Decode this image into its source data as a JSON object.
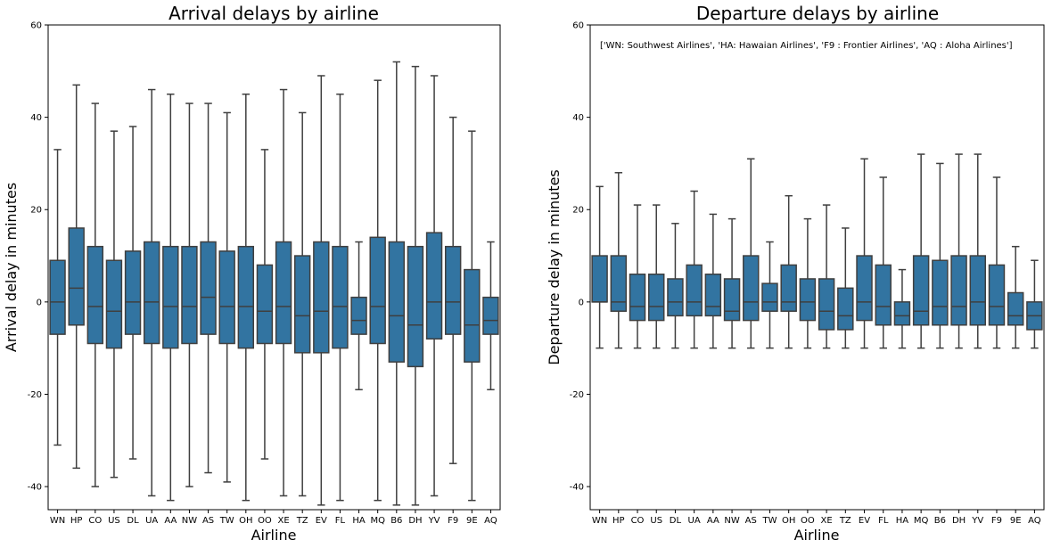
{
  "chart_data": [
    {
      "type": "box",
      "title": "Arrival delays by airline",
      "xlabel": "Airline",
      "ylabel": "Arrival delay in minutes",
      "ylim": [
        -45,
        60
      ],
      "yticks": [
        -40,
        -20,
        0,
        20,
        40,
        60
      ],
      "color": "#3274a1",
      "categories": [
        "WN",
        "HP",
        "CO",
        "US",
        "DL",
        "UA",
        "AA",
        "NW",
        "AS",
        "TW",
        "OH",
        "OO",
        "XE",
        "TZ",
        "EV",
        "FL",
        "HA",
        "MQ",
        "B6",
        "DH",
        "YV",
        "F9",
        "9E",
        "AQ"
      ],
      "boxes": [
        {
          "whislo": -31,
          "q1": -7,
          "med": 0,
          "q3": 9,
          "whishi": 33
        },
        {
          "whislo": -36,
          "q1": -5,
          "med": 3,
          "q3": 16,
          "whishi": 47
        },
        {
          "whislo": -40,
          "q1": -9,
          "med": -1,
          "q3": 12,
          "whishi": 43
        },
        {
          "whislo": -38,
          "q1": -10,
          "med": -2,
          "q3": 9,
          "whishi": 37
        },
        {
          "whislo": -34,
          "q1": -7,
          "med": 0,
          "q3": 11,
          "whishi": 38
        },
        {
          "whislo": -42,
          "q1": -9,
          "med": 0,
          "q3": 13,
          "whishi": 46
        },
        {
          "whislo": -43,
          "q1": -10,
          "med": -1,
          "q3": 12,
          "whishi": 45
        },
        {
          "whislo": -40,
          "q1": -9,
          "med": -1,
          "q3": 12,
          "whishi": 43
        },
        {
          "whislo": -37,
          "q1": -7,
          "med": 1,
          "q3": 13,
          "whishi": 43
        },
        {
          "whislo": -39,
          "q1": -9,
          "med": -1,
          "q3": 11,
          "whishi": 41
        },
        {
          "whislo": -43,
          "q1": -10,
          "med": -1,
          "q3": 12,
          "whishi": 45
        },
        {
          "whislo": -34,
          "q1": -9,
          "med": -2,
          "q3": 8,
          "whishi": 33
        },
        {
          "whislo": -42,
          "q1": -9,
          "med": -1,
          "q3": 13,
          "whishi": 46
        },
        {
          "whislo": -42,
          "q1": -11,
          "med": -3,
          "q3": 10,
          "whishi": 41
        },
        {
          "whislo": -44,
          "q1": -11,
          "med": -2,
          "q3": 13,
          "whishi": 49
        },
        {
          "whislo": -43,
          "q1": -10,
          "med": -1,
          "q3": 12,
          "whishi": 45
        },
        {
          "whislo": -19,
          "q1": -7,
          "med": -4,
          "q3": 1,
          "whishi": 13
        },
        {
          "whislo": -43,
          "q1": -9,
          "med": -1,
          "q3": 14,
          "whishi": 48
        },
        {
          "whislo": -44,
          "q1": -13,
          "med": -3,
          "q3": 13,
          "whishi": 52
        },
        {
          "whislo": -44,
          "q1": -14,
          "med": -5,
          "q3": 12,
          "whishi": 51
        },
        {
          "whislo": -42,
          "q1": -8,
          "med": 0,
          "q3": 15,
          "whishi": 49
        },
        {
          "whislo": -35,
          "q1": -7,
          "med": 0,
          "q3": 12,
          "whishi": 40
        },
        {
          "whislo": -43,
          "q1": -13,
          "med": -5,
          "q3": 7,
          "whishi": 37
        },
        {
          "whislo": -19,
          "q1": -7,
          "med": -4,
          "q3": 1,
          "whishi": 13
        }
      ]
    },
    {
      "type": "box",
      "title": "Departure delays by airline",
      "xlabel": "Airline",
      "ylabel": "Departure delay in minutes",
      "ylim": [
        -45,
        60
      ],
      "yticks": [
        -40,
        -20,
        0,
        20,
        40,
        60
      ],
      "color": "#3274a1",
      "annotation": "['WN: Southwest Airlines', 'HA: Hawaian Airlines', 'F9 : Frontier Airlines', 'AQ : Aloha Airlines']",
      "categories": [
        "WN",
        "HP",
        "CO",
        "US",
        "DL",
        "UA",
        "AA",
        "NW",
        "AS",
        "TW",
        "OH",
        "OO",
        "XE",
        "TZ",
        "EV",
        "FL",
        "HA",
        "MQ",
        "B6",
        "DH",
        "YV",
        "F9",
        "9E",
        "AQ"
      ],
      "boxes": [
        {
          "whislo": -10,
          "q1": 0,
          "med": 0,
          "q3": 10,
          "whishi": 25
        },
        {
          "whislo": -10,
          "q1": -2,
          "med": 0,
          "q3": 10,
          "whishi": 28
        },
        {
          "whislo": -10,
          "q1": -4,
          "med": -1,
          "q3": 6,
          "whishi": 21
        },
        {
          "whislo": -10,
          "q1": -4,
          "med": -1,
          "q3": 6,
          "whishi": 21
        },
        {
          "whislo": -10,
          "q1": -3,
          "med": 0,
          "q3": 5,
          "whishi": 17
        },
        {
          "whislo": -10,
          "q1": -3,
          "med": 0,
          "q3": 8,
          "whishi": 24
        },
        {
          "whislo": -10,
          "q1": -3,
          "med": -1,
          "q3": 6,
          "whishi": 19
        },
        {
          "whislo": -10,
          "q1": -4,
          "med": -2,
          "q3": 5,
          "whishi": 18
        },
        {
          "whislo": -10,
          "q1": -4,
          "med": 0,
          "q3": 10,
          "whishi": 31
        },
        {
          "whislo": -10,
          "q1": -2,
          "med": 0,
          "q3": 4,
          "whishi": 13
        },
        {
          "whislo": -10,
          "q1": -2,
          "med": 0,
          "q3": 8,
          "whishi": 23
        },
        {
          "whislo": -10,
          "q1": -4,
          "med": 0,
          "q3": 5,
          "whishi": 18
        },
        {
          "whislo": -10,
          "q1": -6,
          "med": -2,
          "q3": 5,
          "whishi": 21
        },
        {
          "whislo": -10,
          "q1": -6,
          "med": -3,
          "q3": 3,
          "whishi": 16
        },
        {
          "whislo": -10,
          "q1": -4,
          "med": 0,
          "q3": 10,
          "whishi": 31
        },
        {
          "whislo": -10,
          "q1": -5,
          "med": -1,
          "q3": 8,
          "whishi": 27
        },
        {
          "whislo": -10,
          "q1": -5,
          "med": -3,
          "q3": 0,
          "whishi": 7
        },
        {
          "whislo": -10,
          "q1": -5,
          "med": -2,
          "q3": 10,
          "whishi": 32
        },
        {
          "whislo": -10,
          "q1": -5,
          "med": -1,
          "q3": 9,
          "whishi": 30
        },
        {
          "whislo": -10,
          "q1": -5,
          "med": -1,
          "q3": 10,
          "whishi": 32
        },
        {
          "whislo": -10,
          "q1": -5,
          "med": 0,
          "q3": 10,
          "whishi": 32
        },
        {
          "whislo": -10,
          "q1": -5,
          "med": -1,
          "q3": 8,
          "whishi": 27
        },
        {
          "whislo": -10,
          "q1": -5,
          "med": -3,
          "q3": 2,
          "whishi": 12
        },
        {
          "whislo": -10,
          "q1": -6,
          "med": -3,
          "q3": 0,
          "whishi": 9
        }
      ]
    }
  ]
}
